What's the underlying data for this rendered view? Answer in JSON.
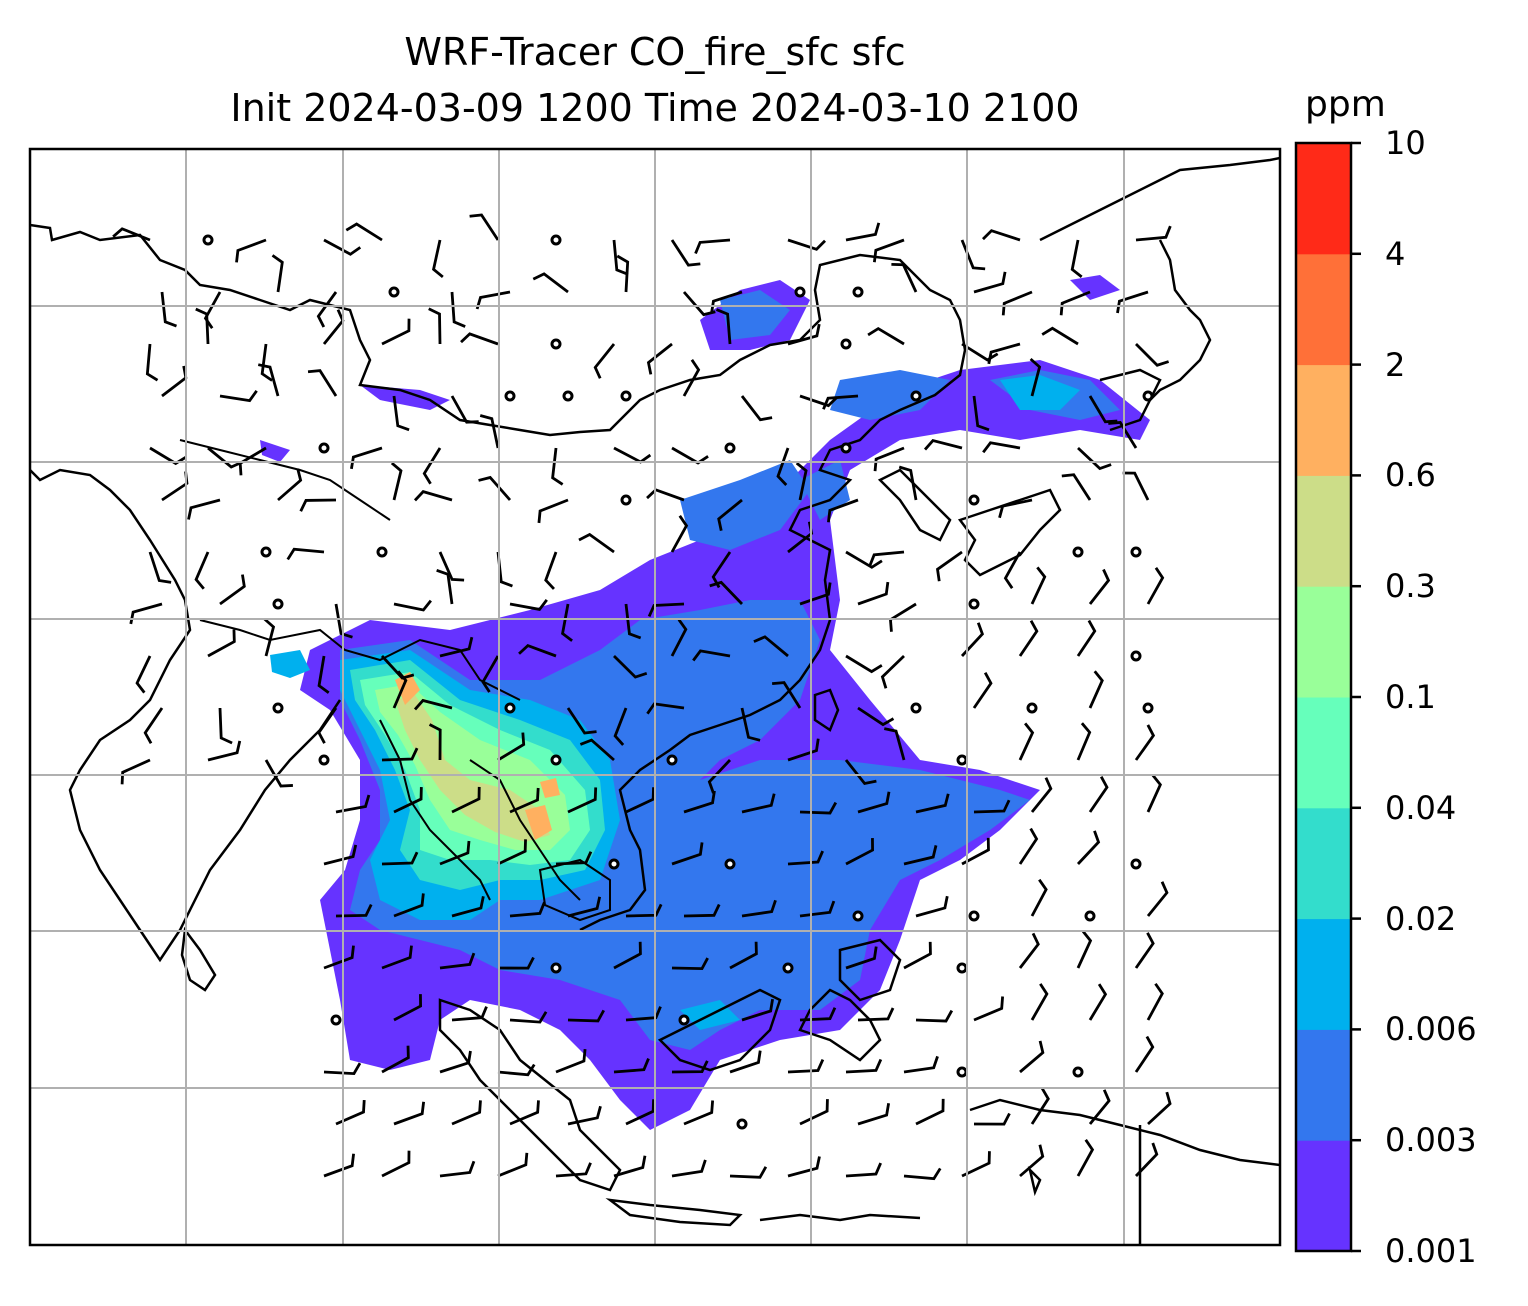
{
  "title": {
    "line1": "WRF-Tracer CO_fire_sfc sfc",
    "line2": "Init 2024-03-09 1200 Time 2024-03-10 2100"
  },
  "colorbar": {
    "unit": "ppm",
    "levels": [
      "0.001",
      "0.003",
      "0.006",
      "0.02",
      "0.04",
      "0.1",
      "0.3",
      "0.6",
      "2",
      "4",
      "10"
    ],
    "colors": [
      "#6633ff",
      "#3377ee",
      "#00b0ee",
      "#33ddcc",
      "#66ffbb",
      "#99ff99",
      "#ccdd88",
      "#ffb060",
      "#ff7038",
      "#ff2a18"
    ]
  },
  "map": {
    "field": "CO_fire_sfc",
    "level": "sfc",
    "overlay": "wind barbs",
    "gridlines": true,
    "coastlines": true,
    "borders": true
  }
}
